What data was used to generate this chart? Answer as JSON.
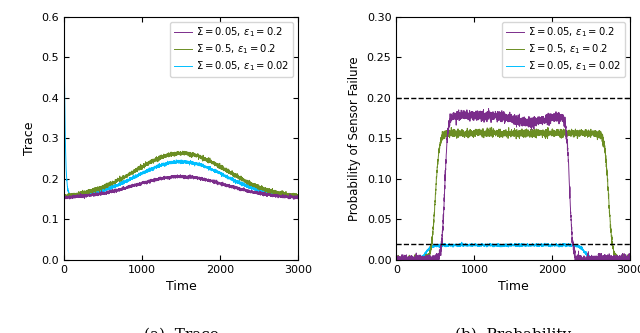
{
  "fig_width": 6.4,
  "fig_height": 3.33,
  "dpi": 100,
  "colors": {
    "purple": "#7B2D8B",
    "olive": "#6B8E23",
    "cyan": "#00BFFF"
  },
  "left_plot": {
    "xlim": [
      0,
      3000
    ],
    "ylim": [
      0,
      0.6
    ],
    "yticks": [
      0,
      0.1,
      0.2,
      0.3,
      0.4,
      0.5,
      0.6
    ],
    "xticks": [
      0,
      1000,
      2000,
      3000
    ],
    "xlabel": "Time",
    "ylabel": "Trace",
    "caption": "(a)  Trace",
    "legend": [
      "$\\Sigma = 0.05,\\, \\epsilon_1 = 0.2$",
      "$\\Sigma = 0.5,\\, \\epsilon_1 = 0.2$",
      "$\\Sigma = 0.05,\\, \\epsilon_1 = 0.02$"
    ]
  },
  "right_plot": {
    "xlim": [
      0,
      3000
    ],
    "ylim": [
      0,
      0.3
    ],
    "yticks": [
      0,
      0.05,
      0.1,
      0.15,
      0.2,
      0.25,
      0.3
    ],
    "xticks": [
      0,
      1000,
      2000,
      3000
    ],
    "xlabel": "Time",
    "ylabel": "Probability of Sensor Failure",
    "caption": "(b)  Probability",
    "dashed_lines": [
      0.2,
      0.02
    ],
    "legend": [
      "$\\Sigma = 0.05,\\, \\epsilon_1 = 0.2$",
      "$\\Sigma = 0.5,\\, \\epsilon_1 = 0.2$",
      "$\\Sigma = 0.05,\\, \\epsilon_1 = 0.02$"
    ]
  }
}
